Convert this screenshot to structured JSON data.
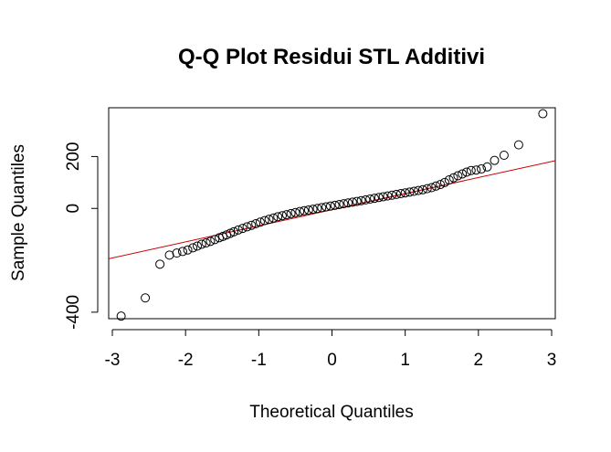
{
  "chart_data": {
    "type": "scatter",
    "title": "Q-Q Plot Residui STL Additivi",
    "xlabel": "Theoretical Quantiles",
    "ylabel": "Sample Quantiles",
    "xlim": [
      -3.05,
      3.05
    ],
    "ylim": [
      -425,
      388
    ],
    "x_ticks": [
      -3,
      -2,
      -1,
      0,
      1,
      2,
      3
    ],
    "x_tick_labels": [
      "-3",
      "-2",
      "-1",
      "0",
      "1",
      "2",
      "3"
    ],
    "y_ticks": [
      -400,
      0,
      200
    ],
    "y_tick_labels": [
      "-400",
      "0",
      "200"
    ],
    "grid": false,
    "legend": "none",
    "marker": "open-circle",
    "point_color": "#000000",
    "reference_line": {
      "color": "#cc0000",
      "slope": 62,
      "intercept": -5
    },
    "points": {
      "x": [
        -2.88,
        -2.55,
        -2.35,
        -2.22,
        -2.12,
        -2.04,
        -1.97,
        -1.9,
        -1.84,
        -1.78,
        -1.72,
        -1.66,
        -1.6,
        -1.54,
        -1.49,
        -1.44,
        -1.39,
        -1.34,
        -1.28,
        -1.22,
        -1.16,
        -1.1,
        -1.04,
        -0.98,
        -0.92,
        -0.86,
        -0.8,
        -0.74,
        -0.68,
        -0.62,
        -0.56,
        -0.5,
        -0.44,
        -0.38,
        -0.32,
        -0.26,
        -0.2,
        -0.14,
        -0.08,
        -0.02,
        0.04,
        0.1,
        0.16,
        0.22,
        0.28,
        0.34,
        0.4,
        0.46,
        0.52,
        0.58,
        0.64,
        0.7,
        0.76,
        0.82,
        0.88,
        0.94,
        1.0,
        1.06,
        1.12,
        1.18,
        1.24,
        1.3,
        1.36,
        1.42,
        1.48,
        1.54,
        1.6,
        1.66,
        1.72,
        1.78,
        1.84,
        1.9,
        1.97,
        2.04,
        2.12,
        2.22,
        2.35,
        2.55,
        2.88
      ],
      "y": [
        -415,
        -345,
        -215,
        -180,
        -172,
        -166,
        -160,
        -152,
        -145,
        -138,
        -133,
        -127,
        -120,
        -113,
        -108,
        -102,
        -96,
        -90,
        -83,
        -77,
        -71,
        -65,
        -59,
        -53,
        -47,
        -42,
        -37,
        -32,
        -28,
        -24,
        -20,
        -16,
        -12,
        -9,
        -6,
        -3,
        0,
        3,
        6,
        9,
        12,
        15,
        18,
        21,
        24,
        27,
        30,
        33,
        36,
        39,
        42,
        45,
        48,
        51,
        54,
        57,
        60,
        63,
        66,
        69,
        72,
        76,
        80,
        86,
        92,
        100,
        110,
        118,
        126,
        133,
        140,
        146,
        148,
        152,
        160,
        185,
        205,
        245,
        365
      ]
    }
  }
}
